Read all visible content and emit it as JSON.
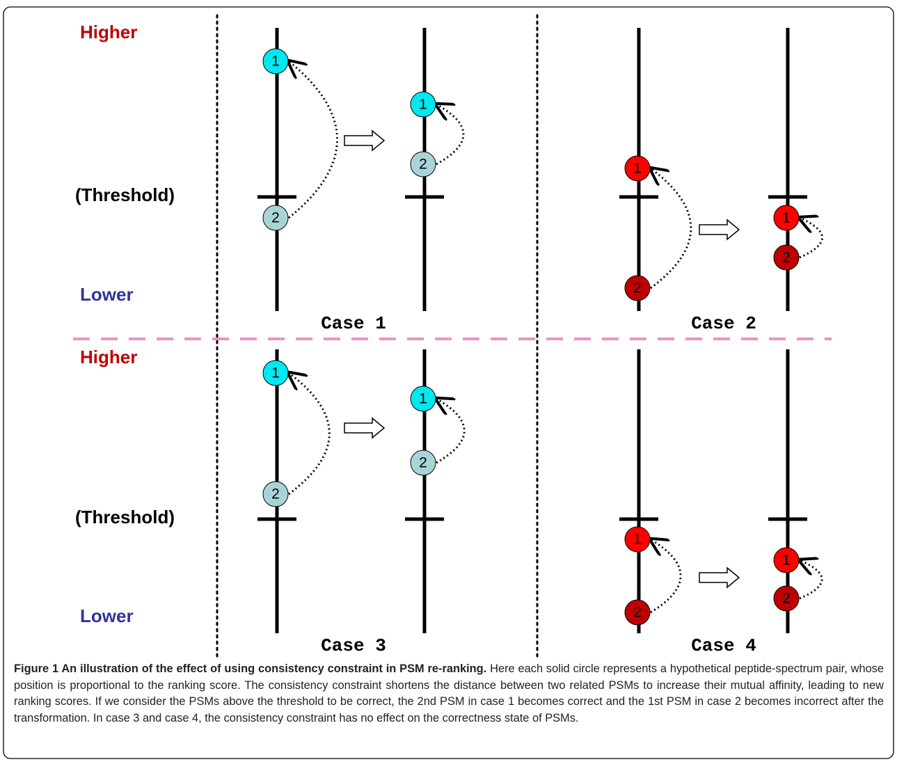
{
  "row_labels": [
    {
      "higher": "Higher",
      "threshold": "(Threshold)",
      "lower": "Lower"
    },
    {
      "higher": "Higher",
      "threshold": "(Threshold)",
      "lower": "Lower"
    }
  ],
  "cases": [
    {
      "label": "Case 1",
      "circles": [
        "1",
        "2",
        "1",
        "2"
      ]
    },
    {
      "label": "Case 2",
      "circles": [
        "1",
        "2",
        "1",
        "2"
      ]
    },
    {
      "label": "Case 3",
      "circles": [
        "1",
        "2",
        "1",
        "2"
      ]
    },
    {
      "label": "Case 4",
      "circles": [
        "1",
        "2",
        "1",
        "2"
      ]
    }
  ],
  "caption": {
    "title": "Figure 1 An illustration of the effect of using consistency constraint in PSM re-ranking.",
    "text": "Here each solid circle represents a hypothetical peptide-spectrum pair, whose position is proportional to the ranking score. The consistency constraint shortens the distance between two related PSMs to increase their mutual affinity, leading to new ranking scores. If we consider the PSMs above the threshold to be correct, the 2nd PSM in case 1 becomes correct and the 1st PSM in case 2 becomes incorrect after the transformation. In case 3 and case 4, the consistency constraint has no effect on the correctness state of PSMs."
  }
}
